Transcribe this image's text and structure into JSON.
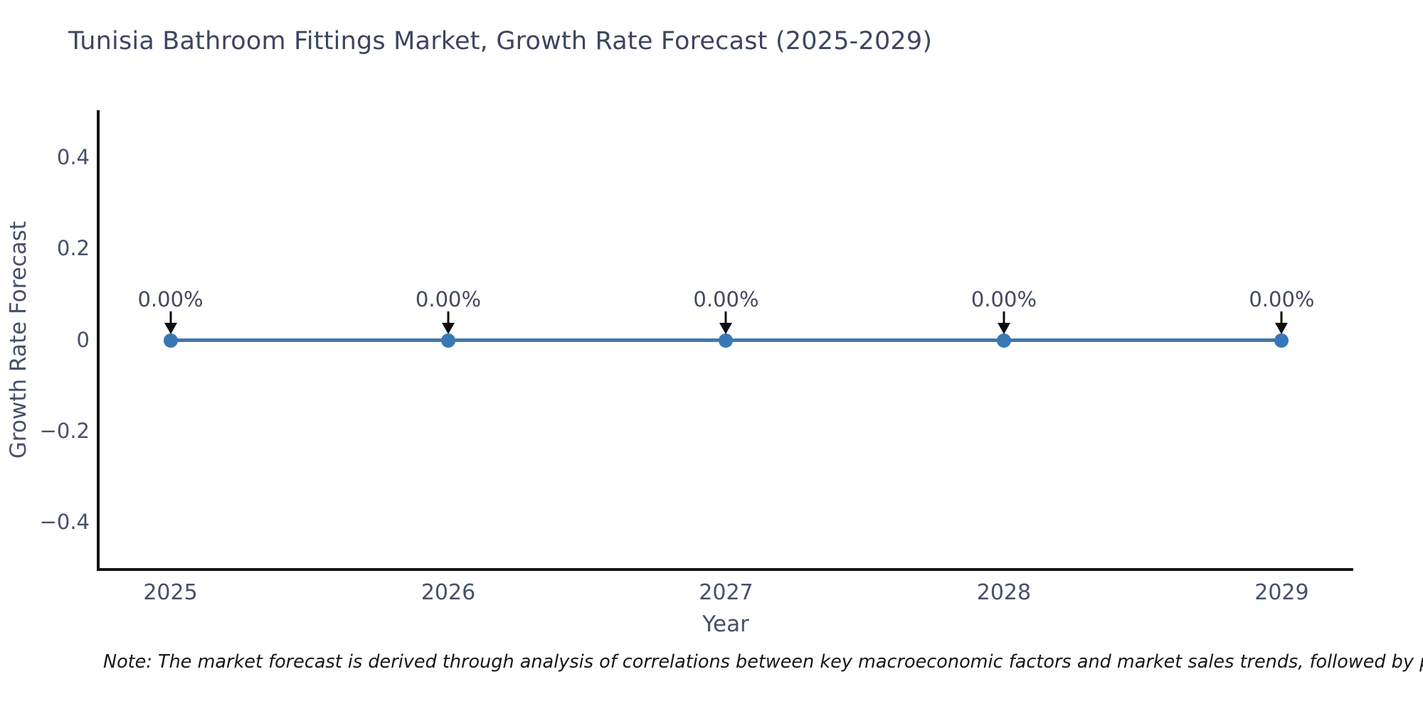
{
  "title": "Tunisia Bathroom Fittings Market, Growth Rate Forecast (2025-2029)",
  "note": "Note: The market forecast is derived through analysis of correlations between key macroeconomic factors and market sales trends, followed by predictive modeling to project future sales",
  "colors": {
    "title_text": "#3c4660",
    "axis_text": "#47506a",
    "annotation_text": "#414a5e",
    "line": "#4078ac",
    "marker": "#3878b6",
    "arrow": "#0d0d0d",
    "spine": "#141414",
    "note_text": "#161616",
    "background": "#ffffff"
  },
  "chart_data": {
    "type": "line",
    "title": "Tunisia Bathroom Fittings Market, Growth Rate Forecast (2025-2029)",
    "xlabel": "Year",
    "ylabel": "Growth Rate Forecast",
    "x": [
      2025,
      2026,
      2027,
      2028,
      2029
    ],
    "series": [
      {
        "name": "Growth Rate Forecast",
        "values": [
          0,
          0,
          0,
          0,
          0
        ]
      }
    ],
    "point_labels": [
      "0.00%",
      "0.00%",
      "0.00%",
      "0.00%",
      "0.00%"
    ],
    "xtick_labels": [
      "2025",
      "2026",
      "2027",
      "2028",
      "2029"
    ],
    "yticks": [
      0.4,
      0.2,
      0,
      -0.2,
      -0.4
    ],
    "ytick_labels": [
      "0.4",
      "0.2",
      "0",
      "−0.2",
      "−0.4"
    ],
    "xlim": [
      2024.74,
      2029.255
    ],
    "ylim": [
      -0.503,
      0.503
    ],
    "grid": false,
    "legend": null,
    "marker_style": "circle",
    "annotation_arrow": "down"
  }
}
